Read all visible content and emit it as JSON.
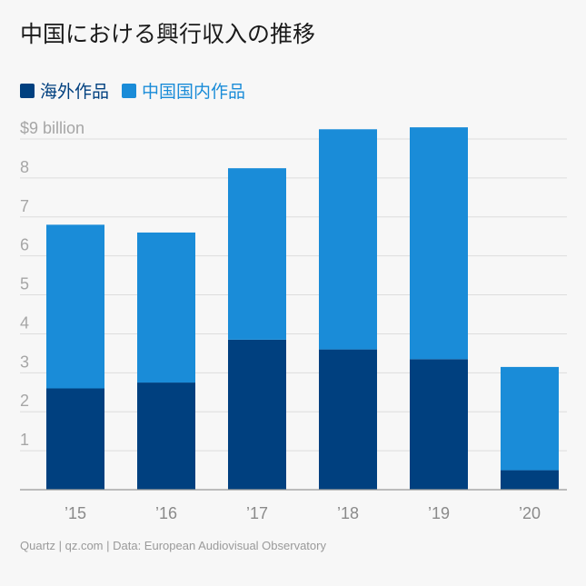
{
  "title": "中国における興行収入の推移",
  "footer": "Quartz | qz.com | Data: European Audiovisual Observatory",
  "colors": {
    "foreign": "#00407f",
    "domestic": "#1a8cd8",
    "grid": "#dddddd",
    "axis_text": "#a6a6a6",
    "baseline": "#999999"
  },
  "chart_data": {
    "type": "bar",
    "stacked": true,
    "categories": [
      "’15",
      "’16",
      "’17",
      "’18",
      "’19",
      "’20"
    ],
    "series": [
      {
        "name": "海外作品",
        "values": [
          2.6,
          2.75,
          3.85,
          3.6,
          3.35,
          0.5
        ]
      },
      {
        "name": "中国国内作品",
        "values": [
          4.2,
          3.85,
          4.4,
          5.65,
          5.95,
          2.65
        ]
      }
    ],
    "ylim": [
      0,
      9
    ],
    "yticks": [
      1,
      2,
      3,
      4,
      5,
      6,
      7,
      8,
      9
    ],
    "ytick_labels": [
      "1",
      "2",
      "3",
      "4",
      "5",
      "6",
      "7",
      "8",
      "$9 billion"
    ],
    "grid": true,
    "legend_position": "top-left"
  }
}
